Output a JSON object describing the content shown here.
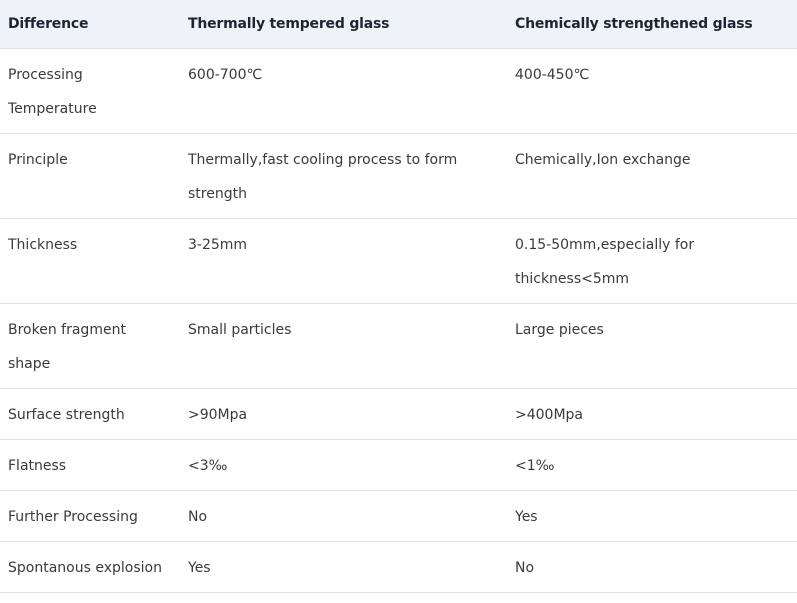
{
  "table": {
    "header": [
      "Difference",
      "Thermally tempered glass",
      "Chemically strengthened glass"
    ],
    "rows": [
      [
        "Processing Temperature",
        "600-700℃",
        "400-450℃"
      ],
      [
        "Principle",
        "Thermally,fast cooling process to form strength",
        "Chemically,Ion exchange"
      ],
      [
        "Thickness",
        "3-25mm",
        "0.15-50mm,especially for thickness<5mm"
      ],
      [
        "Broken fragment shape",
        "Small particles",
        "Large pieces"
      ],
      [
        "Surface strength",
        ">90Mpa",
        ">400Mpa"
      ],
      [
        "Flatness",
        "<3‰",
        "<1‰"
      ],
      [
        "Further Processing",
        "No",
        "Yes"
      ],
      [
        "Spontanous explosion",
        "Yes",
        "No"
      ]
    ]
  }
}
